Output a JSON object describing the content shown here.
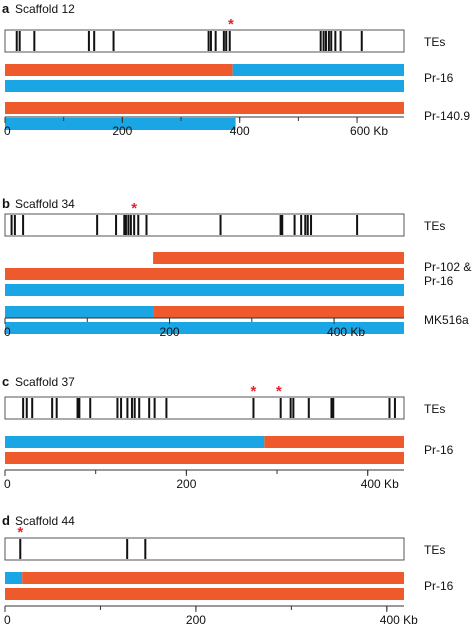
{
  "colors": {
    "orange": "#ee5a2c",
    "blue": "#1aa6e4",
    "te_mark": "#111111",
    "asterisk": "#e8212b"
  },
  "panels": [
    {
      "letter": "a",
      "title": "Scaffold 12",
      "max_kb": 680,
      "te_label": "TEs",
      "te_positions_kb": [
        20,
        25,
        50,
        143,
        152,
        185,
        347,
        351,
        359,
        373,
        377,
        383,
        538,
        543,
        547,
        552,
        556,
        563,
        572,
        608
      ],
      "asterisks_kb": [
        385
      ],
      "tracks": [
        {
          "label": "Pr-16",
          "rows": [
            [
              {
                "start": 0,
                "end": 388,
                "color": "orange"
              },
              {
                "start": 388,
                "end": 680,
                "color": "blue"
              }
            ],
            [
              {
                "start": 0,
                "end": 680,
                "color": "blue"
              }
            ]
          ]
        },
        {
          "label": "Pr-140.9",
          "rows": [
            [
              {
                "start": 0,
                "end": 680,
                "color": "orange"
              }
            ],
            [
              {
                "start": 0,
                "end": 393,
                "color": "blue"
              }
            ]
          ]
        }
      ],
      "ticks": [
        {
          "value": 0,
          "label": "0"
        },
        {
          "value": 200,
          "label": "200"
        },
        {
          "value": 400,
          "label": "400"
        },
        {
          "value": 600,
          "label": "600 Kb"
        }
      ]
    },
    {
      "letter": "b",
      "title": "Scaffold 34",
      "max_kb": 485,
      "te_label": "TEs",
      "te_positions_kb": [
        8,
        12,
        22,
        112,
        135,
        145,
        147,
        150,
        153,
        157,
        162,
        172,
        262,
        335,
        337,
        352,
        360,
        365,
        368,
        372,
        428
      ],
      "asterisks_kb": [
        157
      ],
      "tracks": [
        {
          "label": "Pr-102 & Pr-16",
          "label_lines": [
            "Pr-102 &",
            "Pr-16"
          ],
          "rows": [
            [
              {
                "start": 180,
                "end": 485,
                "color": "orange"
              }
            ],
            [
              {
                "start": 0,
                "end": 485,
                "color": "orange"
              }
            ],
            [
              {
                "start": 0,
                "end": 485,
                "color": "blue"
              }
            ]
          ]
        },
        {
          "label": "MK516a",
          "rows": [
            [
              {
                "start": 0,
                "end": 180,
                "color": "blue"
              },
              {
                "start": 180,
                "end": 485,
                "color": "orange"
              }
            ],
            [
              {
                "start": 0,
                "end": 485,
                "color": "blue"
              }
            ]
          ]
        }
      ],
      "ticks": [
        {
          "value": 0,
          "label": "0"
        },
        {
          "value": 200,
          "label": "200"
        },
        {
          "value": 400,
          "label": "400 Kb"
        }
      ]
    },
    {
      "letter": "c",
      "title": "Scaffold 37",
      "max_kb": 440,
      "te_label": "TEs",
      "te_positions_kb": [
        20,
        24,
        30,
        52,
        57,
        80,
        82,
        94,
        124,
        128,
        135,
        140,
        143,
        148,
        159,
        165,
        178,
        274,
        304,
        315,
        318,
        335,
        360,
        362,
        424,
        430
      ],
      "asterisks_kb": [
        274,
        302
      ],
      "tracks": [
        {
          "label": "Pr-16",
          "rows": [
            [
              {
                "start": 0,
                "end": 286,
                "color": "blue"
              },
              {
                "start": 286,
                "end": 440,
                "color": "orange"
              }
            ],
            [
              {
                "start": 0,
                "end": 440,
                "color": "orange"
              }
            ]
          ]
        }
      ],
      "ticks": [
        {
          "value": 0,
          "label": "0"
        },
        {
          "value": 200,
          "label": "200"
        },
        {
          "value": 400,
          "label": "400 Kb"
        }
      ]
    },
    {
      "letter": "d",
      "title": "Scaffold 44",
      "max_kb": 418,
      "te_label": "TEs",
      "te_positions_kb": [
        16,
        128,
        147
      ],
      "asterisks_kb": [
        16
      ],
      "tracks": [
        {
          "label": "Pr-16",
          "rows": [
            [
              {
                "start": 0,
                "end": 18,
                "color": "blue"
              },
              {
                "start": 18,
                "end": 418,
                "color": "orange"
              }
            ],
            [
              {
                "start": 0,
                "end": 418,
                "color": "orange"
              }
            ]
          ]
        }
      ],
      "ticks": [
        {
          "value": 0,
          "label": "0"
        },
        {
          "value": 200,
          "label": "200"
        },
        {
          "value": 400,
          "label": "400 Kb"
        }
      ]
    }
  ]
}
